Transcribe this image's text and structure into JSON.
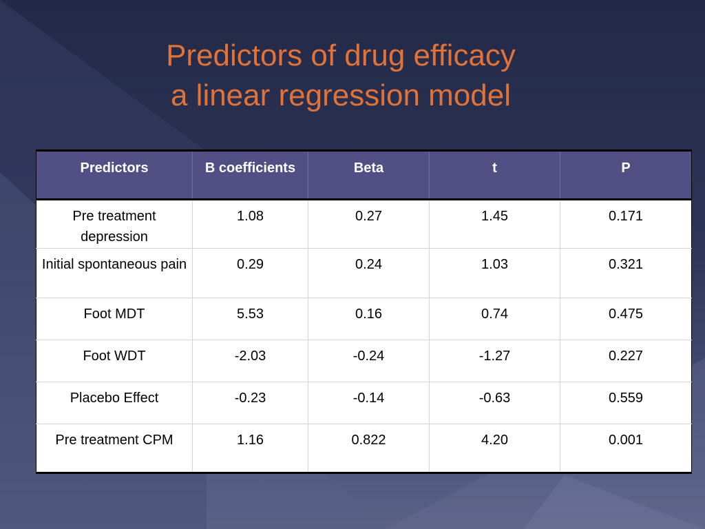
{
  "slide": {
    "title_line1": "Predictors of drug efficacy",
    "title_line2": "a linear regression model"
  },
  "table": {
    "headers": [
      "Predictors",
      "B coefficients",
      "Beta",
      "t",
      "P"
    ],
    "rows": [
      [
        "Pre treatment depression",
        "1.08",
        "0.27",
        "1.45",
        "0.171"
      ],
      [
        "Initial spontaneous pain",
        "0.29",
        "0.24",
        "1.03",
        "0.321"
      ],
      [
        "Foot MDT",
        "5.53",
        "0.16",
        "0.74",
        "0.475"
      ],
      [
        "Foot WDT",
        "-2.03",
        "-0.24",
        "-1.27",
        "0.227"
      ],
      [
        "Placebo Effect",
        "-0.23",
        "-0.14",
        "-0.63",
        "0.559"
      ],
      [
        "Pre treatment CPM",
        "1.16",
        "0.822",
        "4.20",
        "0.001"
      ]
    ]
  },
  "colors": {
    "title": "#e0733a",
    "header_bg": "#524f85",
    "background": "#2d3456"
  }
}
